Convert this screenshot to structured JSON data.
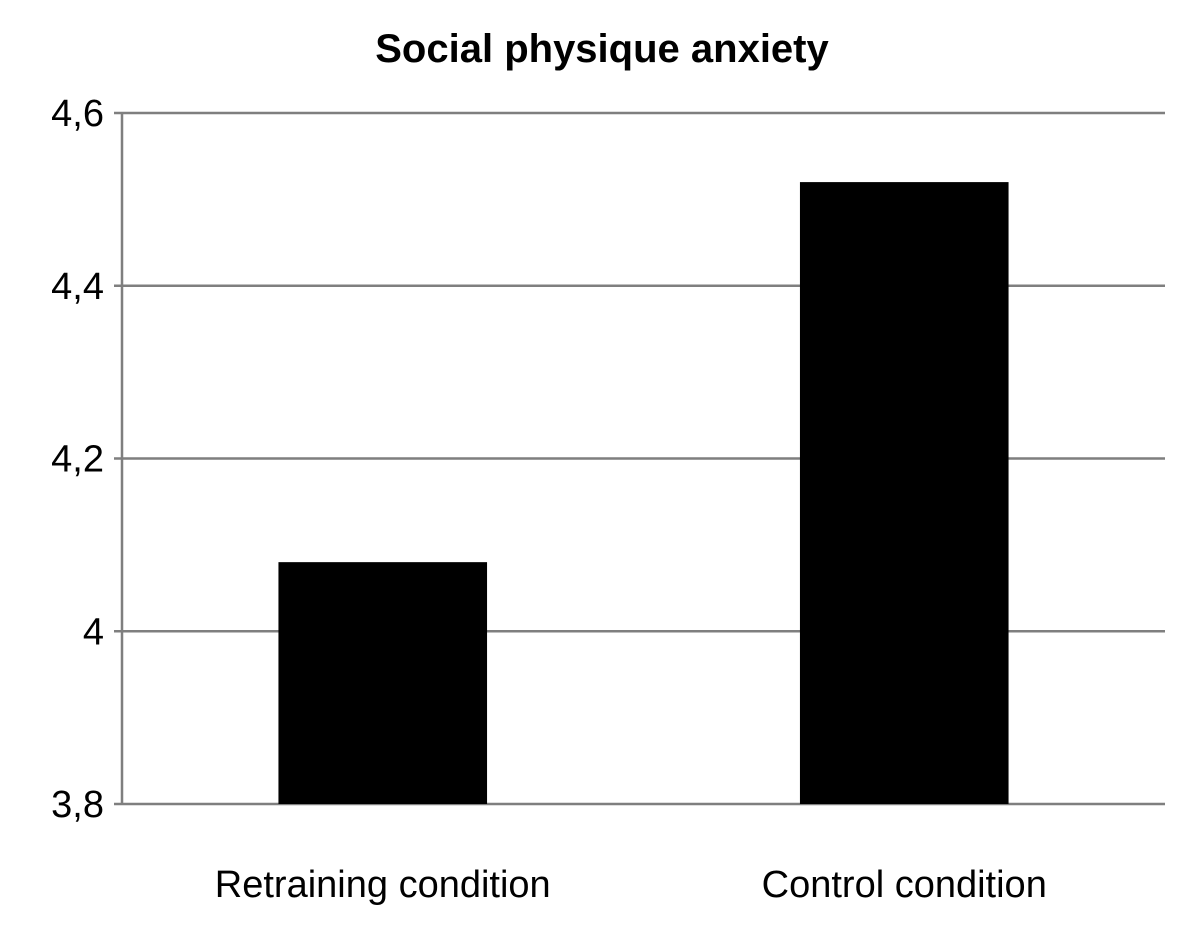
{
  "chart_data": {
    "type": "bar",
    "title": "Social physique anxiety",
    "xlabel": "",
    "ylabel": "",
    "categories": [
      "Retraining condition",
      "Control condition"
    ],
    "values": [
      4.08,
      4.52
    ],
    "ylim": [
      3.8,
      4.6
    ],
    "yticks": [
      3.8,
      4.0,
      4.2,
      4.4,
      4.6
    ],
    "ytick_labels": [
      "3,8",
      "4",
      "4,2",
      "4,4",
      "4,6"
    ],
    "grid": true,
    "legend": "none",
    "bar_color": "#000000",
    "gridline_color": "#7f7f7f"
  }
}
